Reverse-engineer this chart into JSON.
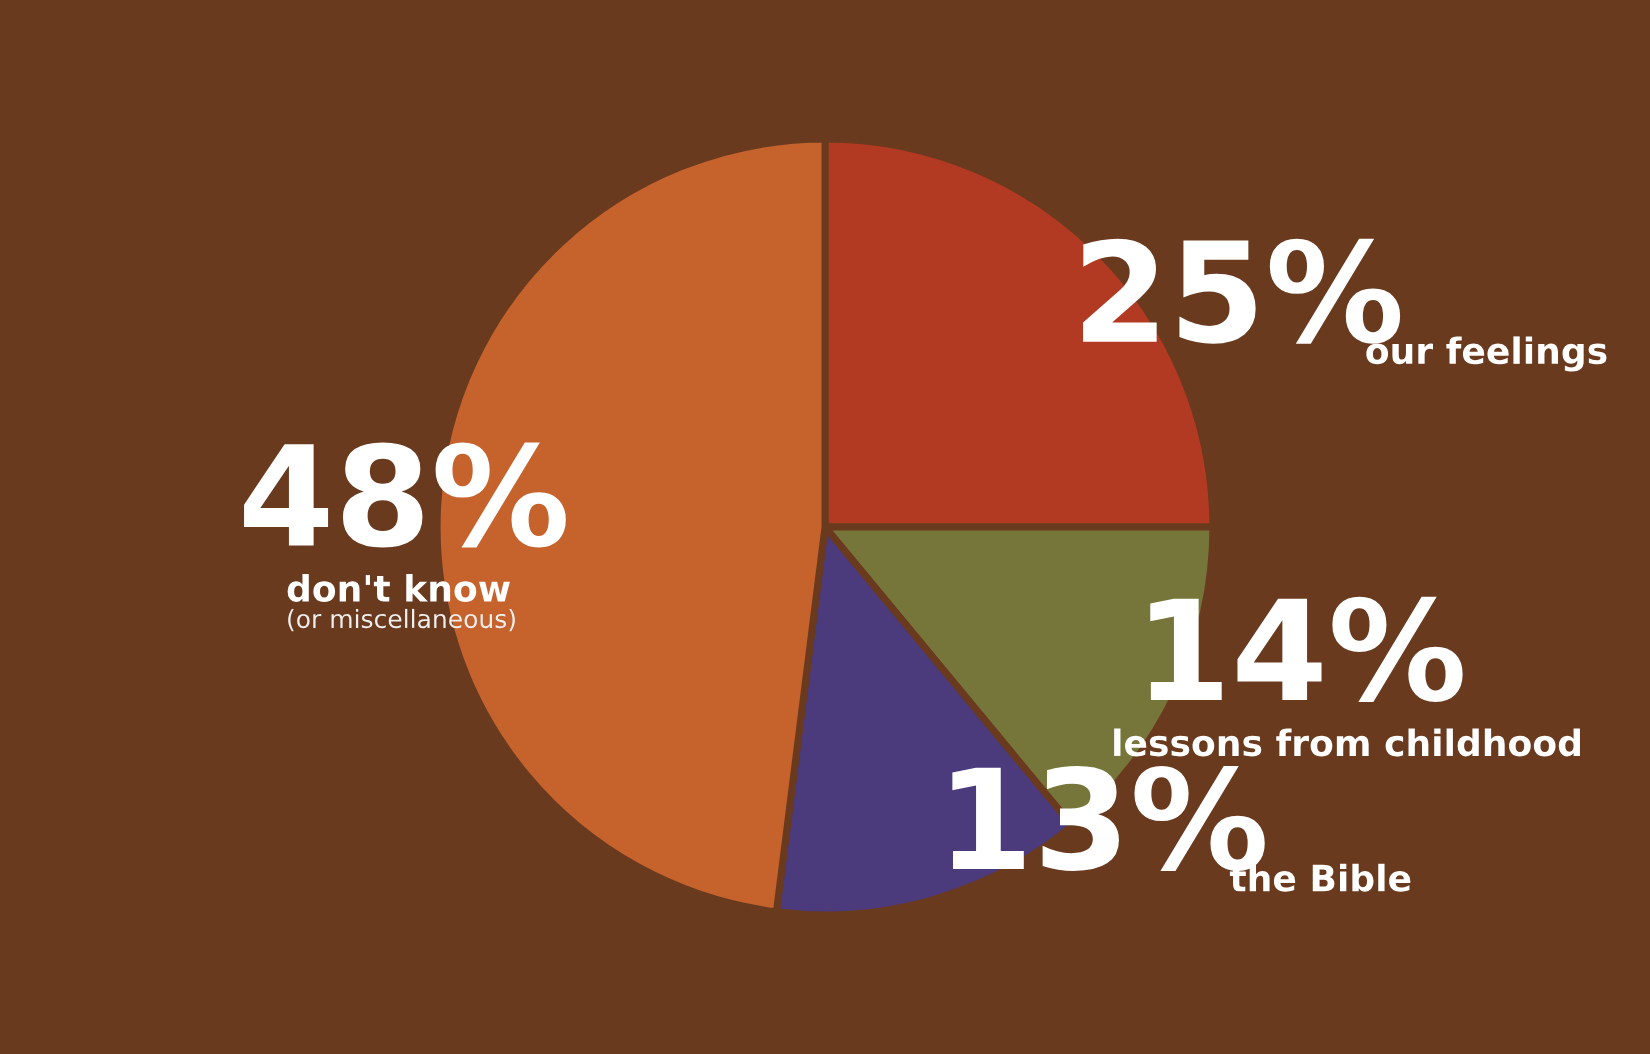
{
  "chart_data": {
    "type": "pie",
    "categories": [
      "our feelings",
      "lessons from childhood",
      "the Bible",
      "don't know"
    ],
    "values": [
      25,
      14,
      13,
      48
    ],
    "value_labels": [
      "25%",
      "14%",
      "13%",
      "48%"
    ],
    "colors": [
      "#b33a22",
      "#77763a",
      "#4b3a7c",
      "#c6622c"
    ],
    "annotations": [
      "(or miscellaneous)"
    ]
  }
}
